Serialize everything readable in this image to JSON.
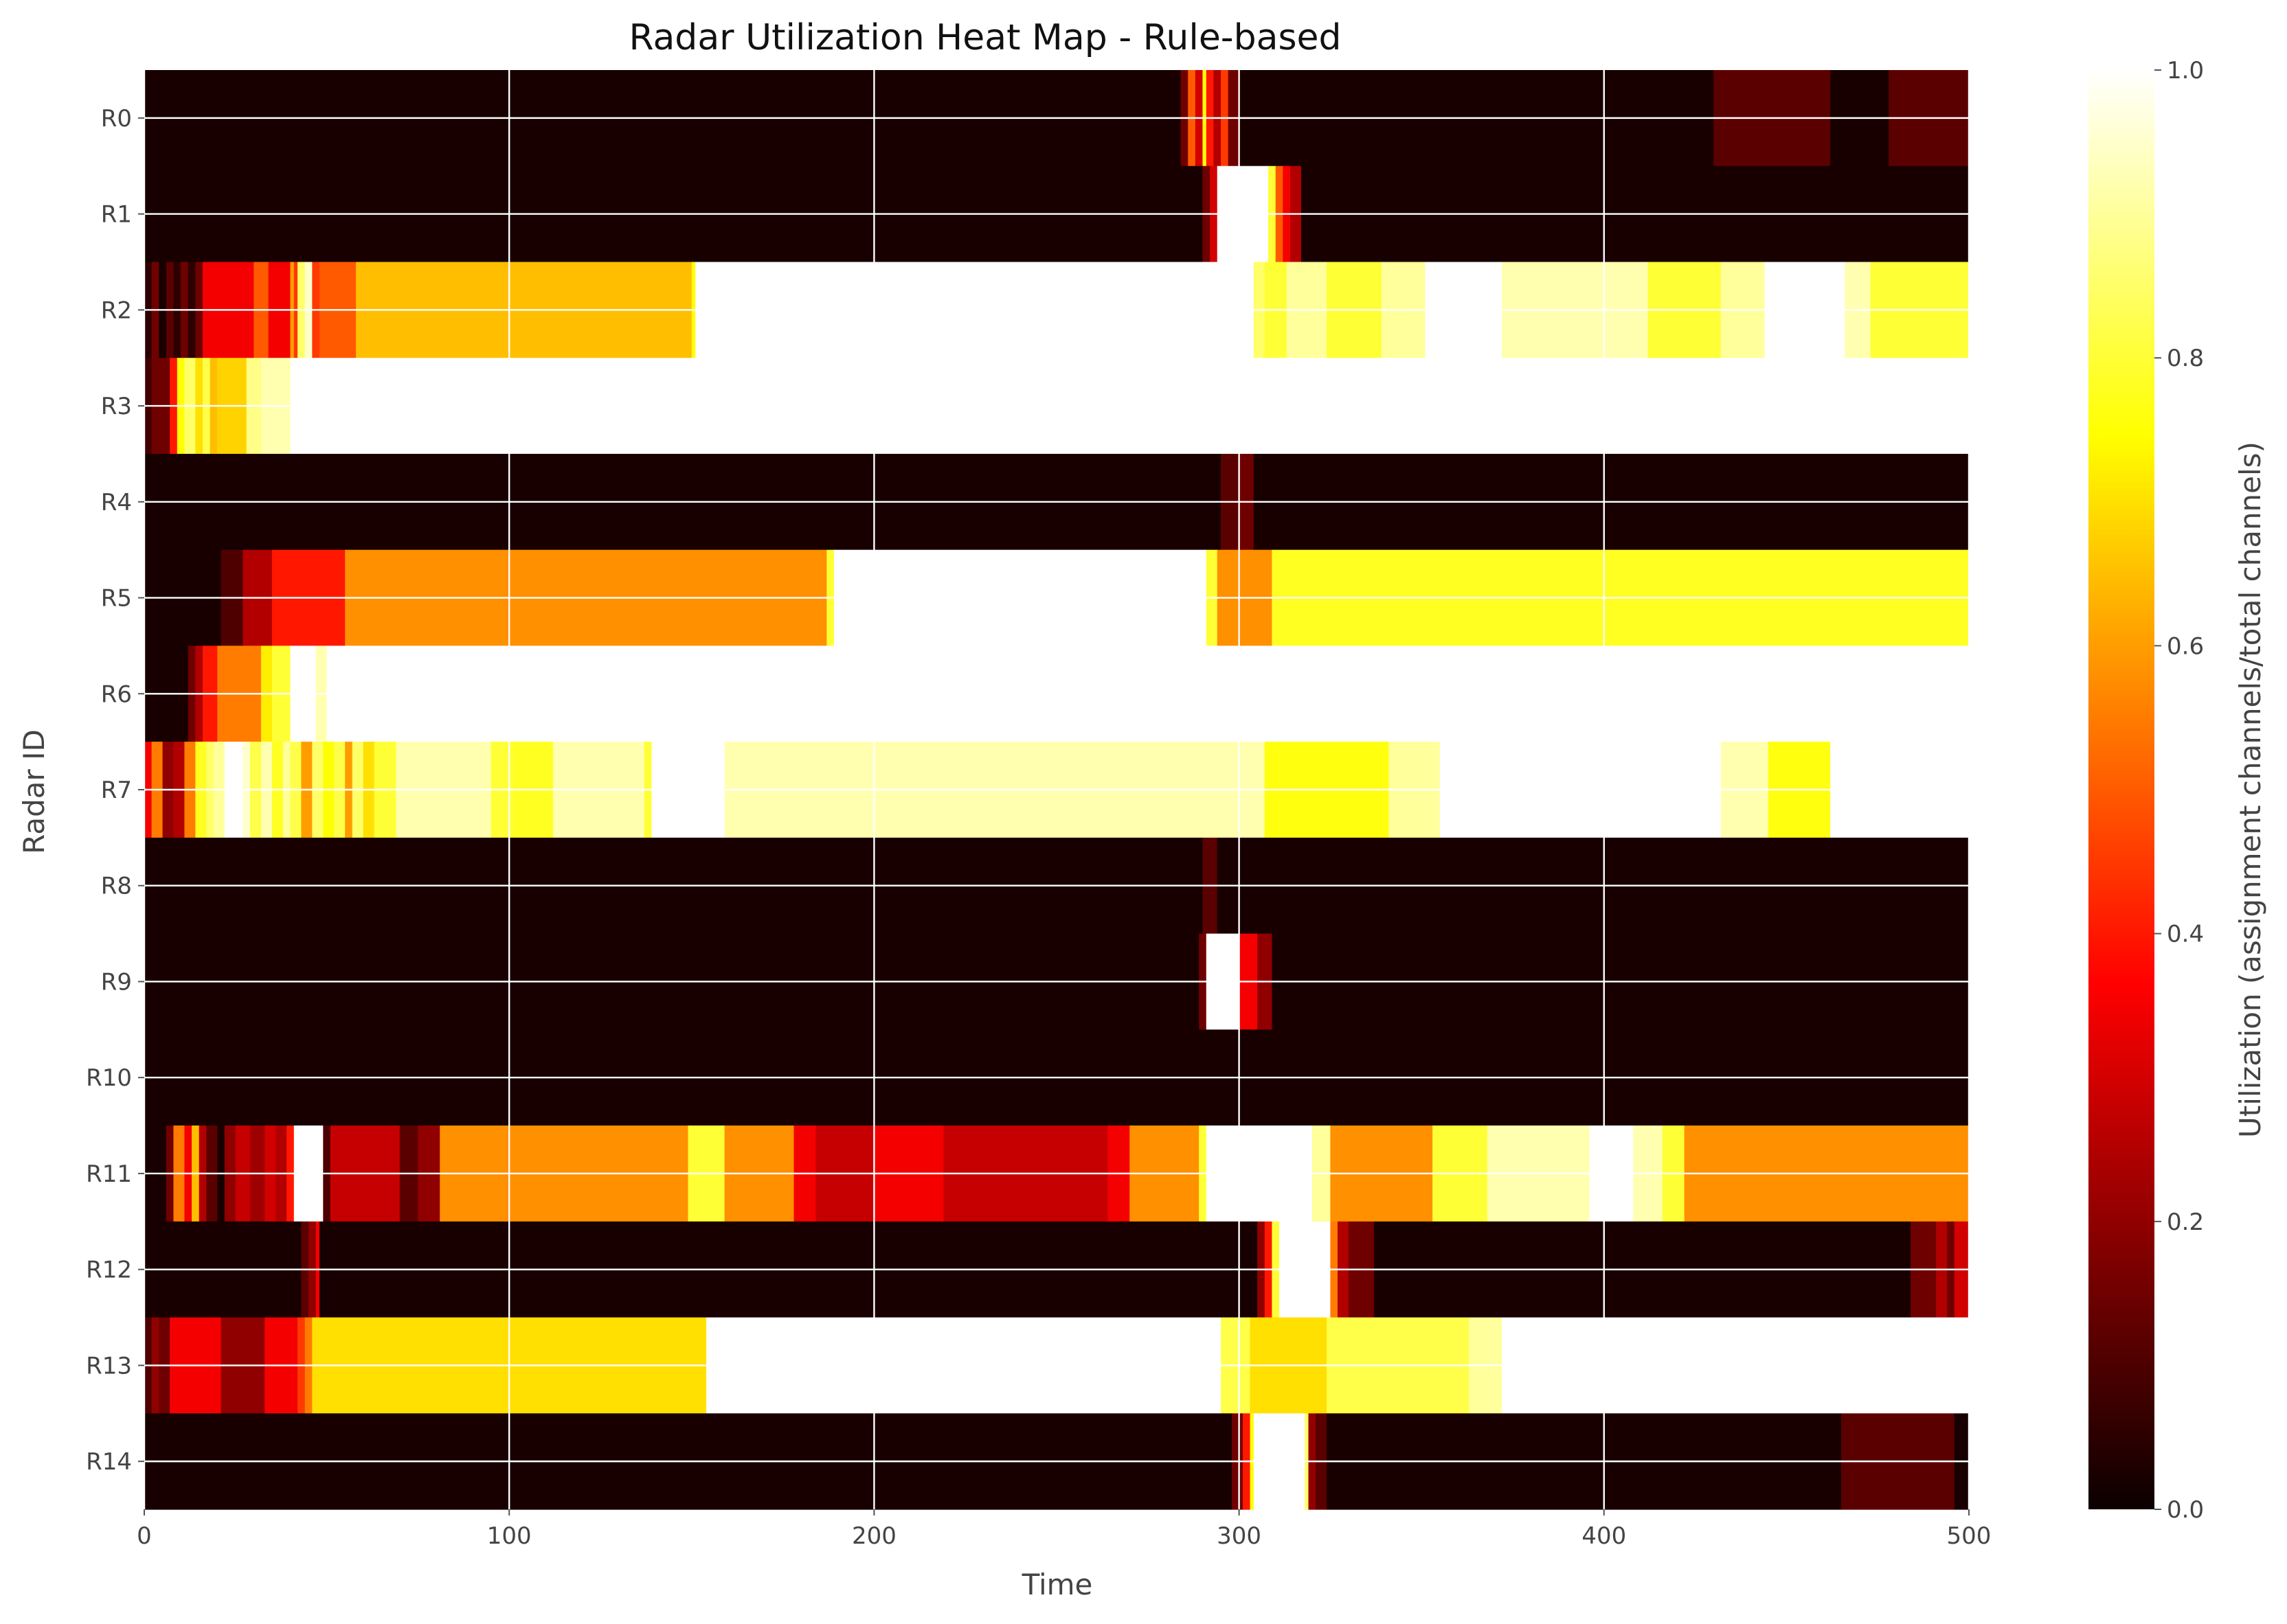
{
  "chart_data": {
    "type": "heatmap",
    "title": "Radar Utilization Heat Map - Rule-based",
    "xlabel": "Time",
    "ylabel": "Radar ID",
    "colorbar_label": "Utilization (assignment channels/total channels)",
    "colormap": "hot",
    "xlim": [
      0,
      500
    ],
    "vlim": [
      0.0,
      1.0
    ],
    "x_ticks": [
      "0",
      "100",
      "200",
      "300",
      "400",
      "500"
    ],
    "x_tick_values": [
      0,
      100,
      200,
      300,
      400,
      500
    ],
    "colorbar_ticks": [
      "0.0",
      "0.2",
      "0.4",
      "0.6",
      "0.8",
      "1.0"
    ],
    "colorbar_tick_values": [
      0.0,
      0.2,
      0.4,
      0.6,
      0.8,
      1.0
    ],
    "grid": true,
    "rows": [
      {
        "label": "R0",
        "segments": [
          [
            0,
            284,
            0.02
          ],
          [
            284,
            286,
            0.15
          ],
          [
            286,
            288,
            0.5
          ],
          [
            288,
            290,
            0.3
          ],
          [
            290,
            291,
            0.75
          ],
          [
            291,
            293,
            0.4
          ],
          [
            293,
            295,
            0.25
          ],
          [
            295,
            297,
            0.45
          ],
          [
            297,
            300,
            0.15
          ],
          [
            300,
            430,
            0.02
          ],
          [
            430,
            462,
            0.12
          ],
          [
            462,
            478,
            0.02
          ],
          [
            478,
            500,
            0.12
          ]
        ]
      },
      {
        "label": "R1",
        "segments": [
          [
            0,
            290,
            0.02
          ],
          [
            290,
            292,
            0.15
          ],
          [
            292,
            294,
            0.3
          ],
          [
            294,
            308,
            1.0
          ],
          [
            308,
            310,
            0.8
          ],
          [
            310,
            312,
            0.5
          ],
          [
            312,
            314,
            0.35
          ],
          [
            314,
            317,
            0.25
          ],
          [
            317,
            500,
            0.02
          ]
        ]
      },
      {
        "label": "R2",
        "segments": [
          [
            0,
            2,
            0.05
          ],
          [
            2,
            4,
            0.15
          ],
          [
            4,
            6,
            0.02
          ],
          [
            6,
            8,
            0.12
          ],
          [
            8,
            10,
            0.05
          ],
          [
            10,
            12,
            0.15
          ],
          [
            12,
            14,
            0.05
          ],
          [
            14,
            16,
            0.15
          ],
          [
            16,
            30,
            0.35
          ],
          [
            30,
            34,
            0.5
          ],
          [
            34,
            40,
            0.35
          ],
          [
            40,
            41,
            0.6
          ],
          [
            41,
            42,
            0.45
          ],
          [
            42,
            44,
            0.85
          ],
          [
            44,
            46,
            0.95
          ],
          [
            46,
            48,
            0.45
          ],
          [
            48,
            58,
            0.5
          ],
          [
            58,
            150,
            0.65
          ],
          [
            150,
            151,
            0.75
          ],
          [
            151,
            304,
            1.0
          ],
          [
            304,
            307,
            0.85
          ],
          [
            307,
            313,
            0.8
          ],
          [
            313,
            324,
            0.9
          ],
          [
            324,
            339,
            0.8
          ],
          [
            339,
            351,
            0.9
          ],
          [
            351,
            372,
            1.0
          ],
          [
            372,
            412,
            0.92
          ],
          [
            412,
            432,
            0.8
          ],
          [
            432,
            444,
            0.9
          ],
          [
            444,
            466,
            1.0
          ],
          [
            466,
            473,
            0.92
          ],
          [
            473,
            500,
            0.8
          ]
        ]
      },
      {
        "label": "R3",
        "segments": [
          [
            0,
            2,
            0.08
          ],
          [
            2,
            7,
            0.15
          ],
          [
            7,
            9,
            0.4
          ],
          [
            9,
            11,
            0.75
          ],
          [
            11,
            14,
            0.85
          ],
          [
            14,
            16,
            0.7
          ],
          [
            16,
            18,
            0.82
          ],
          [
            18,
            20,
            0.65
          ],
          [
            20,
            28,
            0.68
          ],
          [
            28,
            32,
            0.88
          ],
          [
            32,
            40,
            0.92
          ],
          [
            40,
            500,
            1.0
          ]
        ]
      },
      {
        "label": "R4",
        "segments": [
          [
            0,
            295,
            0.02
          ],
          [
            295,
            300,
            0.12
          ],
          [
            300,
            304,
            0.15
          ],
          [
            304,
            500,
            0.02
          ]
        ]
      },
      {
        "label": "R5",
        "segments": [
          [
            0,
            21,
            0.02
          ],
          [
            21,
            27,
            0.1
          ],
          [
            27,
            35,
            0.25
          ],
          [
            35,
            55,
            0.4
          ],
          [
            55,
            187,
            0.58
          ],
          [
            187,
            189,
            0.8
          ],
          [
            189,
            291,
            1.0
          ],
          [
            291,
            294,
            0.8
          ],
          [
            294,
            309,
            0.58
          ],
          [
            309,
            500,
            0.78
          ]
        ]
      },
      {
        "label": "R6",
        "segments": [
          [
            0,
            12,
            0.02
          ],
          [
            12,
            14,
            0.15
          ],
          [
            14,
            16,
            0.25
          ],
          [
            16,
            20,
            0.4
          ],
          [
            20,
            32,
            0.55
          ],
          [
            32,
            35,
            0.72
          ],
          [
            35,
            40,
            0.8
          ],
          [
            40,
            47,
            1.0
          ],
          [
            47,
            50,
            0.92
          ],
          [
            50,
            500,
            1.0
          ]
        ]
      },
      {
        "label": "R7",
        "segments": [
          [
            0,
            2,
            0.35
          ],
          [
            2,
            5,
            0.55
          ],
          [
            5,
            8,
            0.2
          ],
          [
            8,
            11,
            0.25
          ],
          [
            11,
            14,
            0.55
          ],
          [
            14,
            17,
            0.78
          ],
          [
            17,
            19,
            0.85
          ],
          [
            19,
            22,
            0.9
          ],
          [
            22,
            27,
            1.0
          ],
          [
            27,
            29,
            0.95
          ],
          [
            29,
            32,
            0.82
          ],
          [
            32,
            35,
            0.92
          ],
          [
            35,
            38,
            0.78
          ],
          [
            38,
            40,
            0.9
          ],
          [
            40,
            43,
            0.82
          ],
          [
            43,
            46,
            0.6
          ],
          [
            46,
            49,
            0.85
          ],
          [
            49,
            52,
            0.75
          ],
          [
            52,
            55,
            0.82
          ],
          [
            55,
            57,
            0.6
          ],
          [
            57,
            60,
            0.85
          ],
          [
            60,
            63,
            0.7
          ],
          [
            63,
            69,
            0.8
          ],
          [
            69,
            95,
            0.92
          ],
          [
            95,
            101,
            0.8
          ],
          [
            101,
            112,
            0.78
          ],
          [
            112,
            137,
            0.92
          ],
          [
            137,
            139,
            0.8
          ],
          [
            139,
            159,
            1.0
          ],
          [
            159,
            307,
            0.92
          ],
          [
            307,
            341,
            0.76
          ],
          [
            341,
            355,
            0.9
          ],
          [
            355,
            432,
            1.0
          ],
          [
            432,
            445,
            0.92
          ],
          [
            445,
            462,
            0.76
          ],
          [
            462,
            500,
            1.0
          ]
        ]
      },
      {
        "label": "R8",
        "segments": [
          [
            0,
            290,
            0.02
          ],
          [
            290,
            294,
            0.12
          ],
          [
            294,
            500,
            0.02
          ]
        ]
      },
      {
        "label": "R9",
        "segments": [
          [
            0,
            289,
            0.02
          ],
          [
            289,
            291,
            0.15
          ],
          [
            291,
            300,
            1.0
          ],
          [
            300,
            305,
            0.35
          ],
          [
            305,
            309,
            0.2
          ],
          [
            309,
            500,
            0.02
          ]
        ]
      },
      {
        "label": "R10",
        "segments": [
          [
            0,
            500,
            0.02
          ]
        ]
      },
      {
        "label": "R11",
        "segments": [
          [
            0,
            6,
            0.02
          ],
          [
            6,
            8,
            0.15
          ],
          [
            8,
            11,
            0.55
          ],
          [
            11,
            13,
            0.35
          ],
          [
            13,
            15,
            0.65
          ],
          [
            15,
            17,
            0.25
          ],
          [
            17,
            20,
            0.12
          ],
          [
            20,
            22,
            0.02
          ],
          [
            22,
            25,
            0.2
          ],
          [
            25,
            29,
            0.28
          ],
          [
            29,
            33,
            0.22
          ],
          [
            33,
            36,
            0.3
          ],
          [
            36,
            39,
            0.25
          ],
          [
            39,
            41,
            0.4
          ],
          [
            41,
            49,
            1.0
          ],
          [
            49,
            51,
            0.1
          ],
          [
            51,
            70,
            0.28
          ],
          [
            70,
            75,
            0.12
          ],
          [
            75,
            81,
            0.2
          ],
          [
            81,
            149,
            0.58
          ],
          [
            149,
            159,
            0.8
          ],
          [
            159,
            178,
            0.58
          ],
          [
            178,
            184,
            0.35
          ],
          [
            184,
            200,
            0.28
          ],
          [
            200,
            219,
            0.35
          ],
          [
            219,
            264,
            0.28
          ],
          [
            264,
            270,
            0.35
          ],
          [
            270,
            289,
            0.58
          ],
          [
            289,
            291,
            0.8
          ],
          [
            291,
            320,
            1.0
          ],
          [
            320,
            325,
            0.9
          ],
          [
            325,
            353,
            0.58
          ],
          [
            353,
            368,
            0.8
          ],
          [
            368,
            396,
            0.92
          ],
          [
            396,
            408,
            1.0
          ],
          [
            408,
            416,
            0.92
          ],
          [
            416,
            422,
            0.8
          ],
          [
            422,
            500,
            0.58
          ]
        ]
      },
      {
        "label": "R12",
        "segments": [
          [
            0,
            43,
            0.02
          ],
          [
            43,
            45,
            0.12
          ],
          [
            45,
            47,
            0.2
          ],
          [
            47,
            48,
            0.35
          ],
          [
            48,
            305,
            0.02
          ],
          [
            305,
            307,
            0.2
          ],
          [
            307,
            309,
            0.4
          ],
          [
            309,
            311,
            0.8
          ],
          [
            311,
            325,
            1.0
          ],
          [
            325,
            327,
            0.55
          ],
          [
            327,
            330,
            0.25
          ],
          [
            330,
            337,
            0.15
          ],
          [
            337,
            484,
            0.02
          ],
          [
            484,
            491,
            0.15
          ],
          [
            491,
            494,
            0.25
          ],
          [
            494,
            496,
            0.15
          ],
          [
            496,
            500,
            0.3
          ]
        ]
      },
      {
        "label": "R13",
        "segments": [
          [
            0,
            2,
            0.1
          ],
          [
            2,
            4,
            0.2
          ],
          [
            4,
            7,
            0.15
          ],
          [
            7,
            21,
            0.35
          ],
          [
            21,
            33,
            0.2
          ],
          [
            33,
            42,
            0.35
          ],
          [
            42,
            44,
            0.45
          ],
          [
            44,
            46,
            0.55
          ],
          [
            46,
            48,
            0.7
          ],
          [
            48,
            154,
            0.7
          ],
          [
            154,
            295,
            1.0
          ],
          [
            295,
            303,
            0.82
          ],
          [
            303,
            324,
            0.7
          ],
          [
            324,
            363,
            0.82
          ],
          [
            363,
            372,
            0.9
          ],
          [
            372,
            500,
            1.0
          ]
        ]
      },
      {
        "label": "R14",
        "segments": [
          [
            0,
            298,
            0.02
          ],
          [
            298,
            301,
            0.15
          ],
          [
            301,
            303,
            0.4
          ],
          [
            303,
            304,
            0.75
          ],
          [
            304,
            318,
            1.0
          ],
          [
            318,
            319,
            0.85
          ],
          [
            319,
            321,
            0.2
          ],
          [
            321,
            324,
            0.12
          ],
          [
            324,
            465,
            0.02
          ],
          [
            465,
            496,
            0.12
          ],
          [
            496,
            500,
            0.02
          ]
        ]
      }
    ]
  }
}
